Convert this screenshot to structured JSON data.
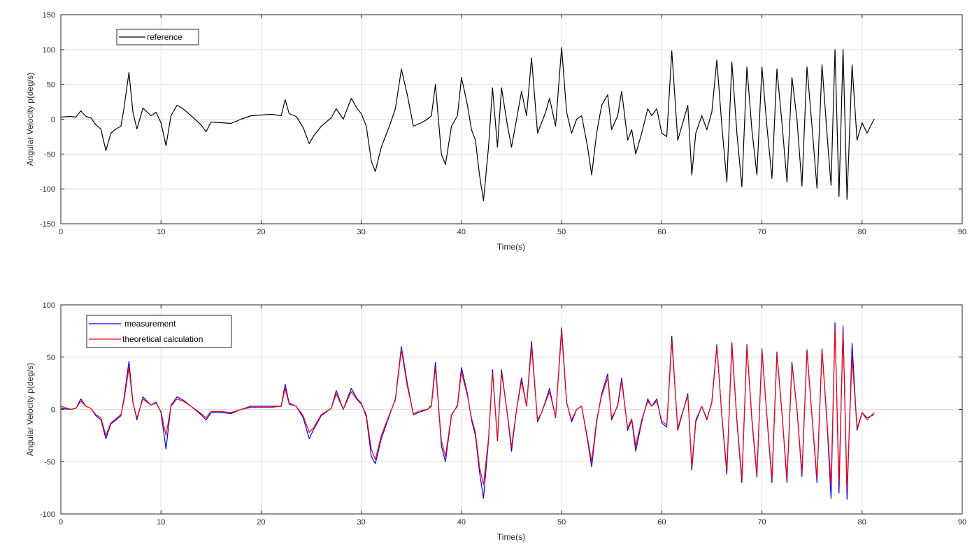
{
  "figure": {
    "background": "#ffffff",
    "axes_background": "#ffffff",
    "grid_color": "#e0e0e0",
    "axis_color": "#262626"
  },
  "chart_data": [
    {
      "type": "line",
      "xlabel": "Time(s)",
      "ylabel": "Angular Velocity p(deg/s)",
      "xlim": [
        0,
        90
      ],
      "ylim": [
        -150,
        150
      ],
      "xticks": [
        0,
        10,
        20,
        30,
        40,
        50,
        60,
        70,
        80,
        90
      ],
      "yticks": [
        -150,
        -100,
        -50,
        0,
        50,
        100,
        150
      ],
      "grid": true,
      "legend": "top-left",
      "series": [
        {
          "name": "reference",
          "color": "#000000",
          "x": [
            0,
            1,
            1.5,
            2,
            2.5,
            3,
            3.5,
            4,
            4.5,
            5,
            5.5,
            6,
            6.3,
            6.8,
            7.2,
            7.6,
            8.2,
            9,
            9.5,
            10,
            10.5,
            11,
            11.6,
            12.2,
            13,
            14,
            14.5,
            15,
            16,
            17,
            18,
            19,
            20,
            21,
            22,
            22.4,
            22.8,
            23.5,
            24.2,
            24.8,
            25.2,
            26,
            27,
            27.5,
            28.2,
            29,
            29.6,
            30,
            30.5,
            31,
            31.4,
            32,
            32.8,
            33.4,
            34,
            34.6,
            35.2,
            36,
            36.6,
            37,
            37.4,
            38,
            38.4,
            39,
            39.6,
            40,
            40.6,
            41,
            41.4,
            41.8,
            42.2,
            42.7,
            43.1,
            43.6,
            44,
            44.6,
            45,
            45.5,
            46,
            46.5,
            47,
            47.6,
            48,
            48.4,
            48.8,
            49.4,
            50,
            50.5,
            51,
            51.5,
            52,
            52.6,
            53,
            53.5,
            54,
            54.6,
            55,
            55.6,
            56,
            56.6,
            57,
            57.4,
            58,
            58.6,
            59,
            59.5,
            60,
            60.5,
            61,
            61.6,
            62,
            62.6,
            63,
            63.4,
            64,
            64.5,
            65,
            65.5,
            66,
            66.5,
            67,
            67.5,
            68,
            68.5,
            69,
            69.5,
            70,
            70.5,
            71,
            71.5,
            72,
            72.5,
            73,
            73.5,
            74,
            74.5,
            75,
            75.5,
            76,
            76.5,
            76.9,
            77.3,
            77.7,
            78.1,
            78.5,
            79,
            79.5,
            80,
            80.5,
            81.2
          ],
          "values": [
            3,
            4,
            3,
            12,
            4,
            2,
            -8,
            -14,
            -45,
            -20,
            -14,
            -10,
            15,
            67,
            10,
            -14,
            16,
            5,
            10,
            -5,
            -38,
            5,
            20,
            15,
            5,
            -8,
            -18,
            -4,
            -5,
            -6,
            0,
            5,
            6,
            7,
            5,
            28,
            8,
            4,
            -12,
            -35,
            -25,
            -10,
            2,
            15,
            0,
            30,
            15,
            8,
            -10,
            -60,
            -75,
            -40,
            -10,
            15,
            72,
            35,
            -10,
            -5,
            0,
            5,
            50,
            -50,
            -65,
            -10,
            5,
            60,
            20,
            -15,
            -30,
            -80,
            -117,
            -40,
            45,
            -40,
            45,
            -10,
            -40,
            0,
            40,
            5,
            88,
            -20,
            -5,
            10,
            30,
            -10,
            103,
            10,
            -20,
            0,
            5,
            -40,
            -80,
            -20,
            20,
            35,
            -15,
            5,
            40,
            -30,
            -15,
            -50,
            -20,
            15,
            5,
            15,
            -20,
            -25,
            98,
            -30,
            -10,
            20,
            -80,
            -20,
            5,
            -15,
            10,
            85,
            -10,
            -90,
            82,
            -20,
            -97,
            75,
            -15,
            -80,
            75,
            -10,
            -85,
            72,
            -5,
            -90,
            60,
            0,
            -96,
            75,
            -10,
            -99,
            78,
            -20,
            -95,
            100,
            -111,
            100,
            -115,
            78,
            -30,
            -5,
            -20,
            0
          ]
        }
      ]
    },
    {
      "type": "line",
      "xlabel": "Time(s)",
      "ylabel": "Angular Velocity p(deg/s)",
      "xlim": [
        0,
        90
      ],
      "ylim": [
        -100,
        100
      ],
      "xticks": [
        0,
        10,
        20,
        30,
        40,
        50,
        60,
        70,
        80,
        90
      ],
      "yticks": [
        -100,
        -50,
        0,
        50,
        100
      ],
      "grid": true,
      "legend": "top-left",
      "series": [
        {
          "name": "measurement",
          "color": "#0000ff",
          "x": [
            0,
            1,
            1.5,
            2,
            2.5,
            3,
            3.5,
            4,
            4.5,
            5,
            5.5,
            6,
            6.3,
            6.8,
            7.2,
            7.6,
            8.2,
            9,
            9.5,
            10,
            10.5,
            11,
            11.6,
            12.2,
            13,
            14,
            14.5,
            15,
            16,
            17,
            18,
            19,
            20,
            21,
            22,
            22.4,
            22.8,
            23.5,
            24.2,
            24.8,
            25.2,
            26,
            27,
            27.5,
            28.2,
            29,
            29.6,
            30,
            30.5,
            31,
            31.4,
            32,
            32.8,
            33.4,
            34,
            34.6,
            35.2,
            36,
            36.6,
            37,
            37.4,
            38,
            38.4,
            39,
            39.6,
            40,
            40.6,
            41,
            41.4,
            41.8,
            42.2,
            42.7,
            43.1,
            43.6,
            44,
            44.6,
            45,
            45.5,
            46,
            46.5,
            47,
            47.6,
            48,
            48.4,
            48.8,
            49.4,
            50,
            50.5,
            51,
            51.5,
            52,
            52.6,
            53,
            53.5,
            54,
            54.6,
            55,
            55.6,
            56,
            56.6,
            57,
            57.4,
            58,
            58.6,
            59,
            59.5,
            60,
            60.5,
            61,
            61.6,
            62,
            62.6,
            63,
            63.4,
            64,
            64.5,
            65,
            65.5,
            66,
            66.5,
            67,
            67.5,
            68,
            68.5,
            69,
            69.5,
            70,
            70.5,
            71,
            71.5,
            72,
            72.5,
            73,
            73.5,
            74,
            74.5,
            75,
            75.5,
            76,
            76.5,
            76.9,
            77.3,
            77.7,
            78.1,
            78.5,
            79,
            79.5,
            80,
            80.5,
            81.2
          ],
          "values": [
            1,
            0,
            1,
            10,
            3,
            1,
            -6,
            -10,
            -28,
            -14,
            -10,
            -6,
            10,
            46,
            7,
            -10,
            12,
            4,
            7,
            -3,
            -38,
            4,
            12,
            9,
            3,
            -5,
            -10,
            -3,
            -3,
            -4,
            0,
            3,
            3,
            3,
            3,
            24,
            6,
            3,
            -8,
            -28,
            -20,
            -6,
            1,
            18,
            0,
            20,
            10,
            6,
            -7,
            -45,
            -52,
            -28,
            -6,
            10,
            60,
            25,
            -5,
            -2,
            0,
            4,
            45,
            -35,
            -50,
            -6,
            4,
            40,
            15,
            -10,
            -25,
            -60,
            -85,
            -30,
            38,
            -30,
            38,
            -6,
            -40,
            0,
            30,
            3,
            65,
            -12,
            -3,
            8,
            20,
            -8,
            78,
            7,
            -12,
            0,
            3,
            -30,
            -55,
            -12,
            15,
            34,
            -10,
            4,
            30,
            -20,
            -10,
            -40,
            -12,
            10,
            3,
            10,
            -13,
            -17,
            70,
            -20,
            -6,
            15,
            -58,
            -12,
            3,
            -10,
            7,
            62,
            -7,
            -62,
            64,
            -12,
            -70,
            62,
            -10,
            -65,
            58,
            -7,
            -70,
            55,
            -3,
            -70,
            45,
            0,
            -64,
            57,
            -7,
            -70,
            58,
            -12,
            -85,
            83,
            -80,
            80,
            -86,
            63,
            -20,
            -3,
            -8,
            -5
          ]
        },
        {
          "name": "theoretical calculation",
          "color": "#ff0000",
          "x": [
            0,
            1,
            1.5,
            2,
            2.5,
            3,
            3.5,
            4,
            4.5,
            5,
            5.5,
            6,
            6.3,
            6.8,
            7.2,
            7.6,
            8.2,
            9,
            9.5,
            10,
            10.5,
            11,
            11.6,
            12.2,
            13,
            14,
            14.5,
            15,
            16,
            17,
            18,
            19,
            20,
            21,
            22,
            22.4,
            22.8,
            23.5,
            24.2,
            24.8,
            25.2,
            26,
            27,
            27.5,
            28.2,
            29,
            29.6,
            30,
            30.5,
            31,
            31.4,
            32,
            32.8,
            33.4,
            34,
            34.6,
            35.2,
            36,
            36.6,
            37,
            37.4,
            38,
            38.4,
            39,
            39.6,
            40,
            40.6,
            41,
            41.4,
            41.8,
            42.2,
            42.7,
            43.1,
            43.6,
            44,
            44.6,
            45,
            45.5,
            46,
            46.5,
            47,
            47.6,
            48,
            48.4,
            48.8,
            49.4,
            50,
            50.5,
            51,
            51.5,
            52,
            52.6,
            53,
            53.5,
            54,
            54.6,
            55,
            55.6,
            56,
            56.6,
            57,
            57.4,
            58,
            58.6,
            59,
            59.5,
            60,
            60.5,
            61,
            61.6,
            62,
            62.6,
            63,
            63.4,
            64,
            64.5,
            65,
            65.5,
            66,
            66.5,
            67,
            67.5,
            68,
            68.5,
            69,
            69.5,
            70,
            70.5,
            71,
            71.5,
            72,
            72.5,
            73,
            73.5,
            74,
            74.5,
            75,
            75.5,
            76,
            76.5,
            76.9,
            77.3,
            77.7,
            78.1,
            78.5,
            79,
            79.5,
            80,
            80.5,
            81.2
          ],
          "values": [
            3,
            0,
            1,
            8,
            3,
            1,
            -5,
            -8,
            -25,
            -13,
            -9,
            -5,
            8,
            40,
            6,
            -8,
            10,
            4,
            6,
            -2,
            -25,
            3,
            10,
            8,
            3,
            -4,
            -8,
            -2,
            -2,
            -3,
            0,
            2,
            2,
            2,
            3,
            20,
            5,
            3,
            -6,
            -22,
            -18,
            -5,
            1,
            15,
            0,
            17,
            9,
            5,
            -5,
            -38,
            -48,
            -25,
            -5,
            9,
            57,
            22,
            -4,
            -1,
            0,
            3,
            40,
            -30,
            -45,
            -5,
            3,
            36,
            13,
            -8,
            -22,
            -55,
            -72,
            -28,
            35,
            -28,
            35,
            -5,
            -36,
            0,
            27,
            3,
            60,
            -10,
            -3,
            7,
            17,
            -7,
            74,
            6,
            -10,
            0,
            3,
            -28,
            -50,
            -10,
            13,
            30,
            -8,
            3,
            27,
            -18,
            -9,
            -35,
            -10,
            8,
            3,
            8,
            -11,
            -15,
            65,
            -18,
            -5,
            13,
            -55,
            -10,
            3,
            -9,
            6,
            60,
            -6,
            -58,
            60,
            -10,
            -66,
            60,
            -8,
            -62,
            56,
            -6,
            -66,
            53,
            -3,
            -66,
            43,
            0,
            -60,
            55,
            -6,
            -66,
            57,
            -10,
            -72,
            78,
            -70,
            75,
            -76,
            50,
            -18,
            -3,
            -10,
            -3
          ]
        }
      ]
    }
  ]
}
